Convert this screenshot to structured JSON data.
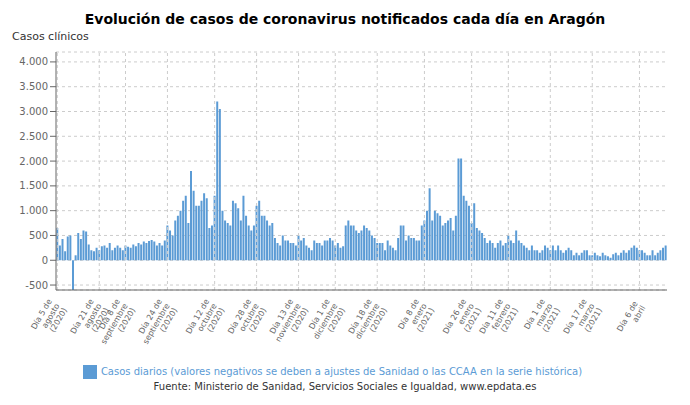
{
  "chart_data": {
    "type": "bar",
    "title": "Evolución de casos de coronavirus notificados cada día en Aragón",
    "ylabel": "Casos clínicos",
    "source": "Fuente: Ministerio de Sanidad, Servicios Sociales e Igualdad, www.epdata.es",
    "categories": [
      "Día 5 de\nagosto\n(2020)",
      null,
      null,
      null,
      null,
      null,
      null,
      null,
      null,
      null,
      null,
      null,
      null,
      null,
      null,
      null,
      "Día 21 de\nagosto\n(2020)",
      null,
      null,
      null,
      null,
      null,
      null,
      null,
      null,
      null,
      "Día 8 de\nseptiembre\n(2020)",
      null,
      null,
      null,
      null,
      null,
      null,
      null,
      null,
      null,
      null,
      null,
      null,
      null,
      null,
      null,
      "Día 24 de\nseptiembre\n(2020)",
      null,
      null,
      null,
      null,
      null,
      null,
      null,
      null,
      null,
      null,
      null,
      null,
      null,
      null,
      null,
      null,
      null,
      "Día 12 de\noctubre\n(2020)",
      null,
      null,
      null,
      null,
      null,
      null,
      null,
      null,
      null,
      null,
      null,
      null,
      null,
      null,
      null,
      "Día 28 de\noctubre\n(2020)",
      null,
      null,
      null,
      null,
      null,
      null,
      null,
      null,
      null,
      null,
      null,
      null,
      null,
      null,
      null,
      "Día 13 de\nnoviembre\n(2020)",
      null,
      null,
      null,
      null,
      null,
      null,
      null,
      null,
      null,
      null,
      null,
      null,
      null,
      "Día 1 de\ndiciembre\n(2020)",
      null,
      null,
      null,
      null,
      null,
      null,
      null,
      null,
      null,
      null,
      null,
      null,
      null,
      null,
      null,
      "Día 18 de\ndiciembre\n(2020)",
      null,
      null,
      null,
      null,
      null,
      null,
      null,
      null,
      null,
      null,
      null,
      null,
      null,
      null,
      null,
      null,
      null,
      "Día 8 de\nenero\n(2021)",
      null,
      null,
      null,
      null,
      null,
      null,
      null,
      null,
      null,
      null,
      null,
      null,
      null,
      null,
      null,
      null,
      null,
      "Día 26 de\nenero\n(2021)",
      null,
      null,
      null,
      null,
      null,
      null,
      null,
      null,
      null,
      null,
      null,
      null,
      null,
      "Día 11 de\nfebrero\n(2021)",
      null,
      null,
      null,
      null,
      null,
      null,
      null,
      null,
      null,
      null,
      null,
      null,
      null,
      null,
      null,
      "Día 1 de\nmarzo\n(2021)",
      null,
      null,
      null,
      null,
      null,
      null,
      null,
      null,
      null,
      null,
      null,
      null,
      null,
      null,
      null,
      "Día 17 de\nmarzo\n(2021)",
      null,
      null,
      null,
      null,
      null,
      null,
      null,
      null,
      null,
      null,
      null,
      null,
      null,
      null,
      null,
      null,
      null,
      "Día 6 de\nabril",
      null,
      null,
      null,
      null,
      null,
      null,
      null,
      null,
      null,
      null
    ],
    "series": [
      {
        "name": "Casos diarios (valores negativos se deben a ajustes de Sanidad o las CCAA en la serie histórica)",
        "color": "#5b9bd5",
        "values": [
          650,
          300,
          430,
          180,
          480,
          500,
          -600,
          100,
          550,
          430,
          600,
          580,
          320,
          200,
          180,
          250,
          200,
          280,
          300,
          250,
          350,
          200,
          250,
          300,
          250,
          200,
          300,
          270,
          250,
          320,
          280,
          350,
          320,
          380,
          350,
          390,
          410,
          380,
          300,
          350,
          300,
          400,
          700,
          600,
          500,
          800,
          900,
          1000,
          1200,
          1300,
          750,
          1800,
          1400,
          1100,
          1100,
          1200,
          1350,
          1250,
          650,
          700,
          1300,
          3200,
          3050,
          1000,
          800,
          750,
          700,
          1200,
          1150,
          1050,
          800,
          1300,
          900,
          700,
          600,
          700,
          1100,
          1200,
          900,
          900,
          800,
          700,
          750,
          450,
          350,
          300,
          500,
          400,
          400,
          350,
          350,
          300,
          500,
          400,
          450,
          300,
          250,
          200,
          400,
          350,
          350,
          300,
          400,
          400,
          450,
          400,
          300,
          350,
          250,
          280,
          700,
          800,
          700,
          700,
          600,
          550,
          600,
          700,
          650,
          600,
          500,
          450,
          350,
          350,
          350,
          200,
          400,
          300,
          250,
          200,
          450,
          700,
          700,
          400,
          500,
          450,
          450,
          400,
          400,
          700,
          800,
          1000,
          1450,
          800,
          1000,
          950,
          900,
          700,
          750,
          800,
          850,
          600,
          900,
          2050,
          2050,
          1300,
          1200,
          1100,
          750,
          1150,
          650,
          600,
          550,
          450,
          350,
          400,
          350,
          250,
          350,
          400,
          300,
          350,
          500,
          400,
          350,
          600,
          400,
          350,
          300,
          250,
          200,
          300,
          200,
          200,
          150,
          200,
          300,
          250,
          200,
          300,
          200,
          300,
          200,
          150,
          200,
          250,
          200,
          100,
          150,
          100,
          150,
          200,
          200,
          100,
          100,
          150,
          100,
          80,
          150,
          100,
          80,
          50,
          120,
          150,
          100,
          150,
          200,
          150,
          200,
          250,
          300,
          250,
          200,
          200,
          150,
          100,
          100,
          200,
          100,
          150,
          200,
          250,
          300
        ]
      }
    ],
    "ylim": [
      -600,
      4200
    ],
    "yticks": [
      -500,
      0,
      500,
      {
        "value": 1000,
        "label": "1.000"
      },
      {
        "value": 1500,
        "label": "1.500"
      },
      {
        "value": 2000,
        "label": "2.000"
      },
      {
        "value": 2500,
        "label": "2.500"
      },
      {
        "value": 3000,
        "label": "3.000"
      },
      {
        "value": 3500,
        "label": "3.500"
      },
      {
        "value": 4000,
        "label": "4.000"
      }
    ],
    "grid": true,
    "legend": "bottom"
  }
}
